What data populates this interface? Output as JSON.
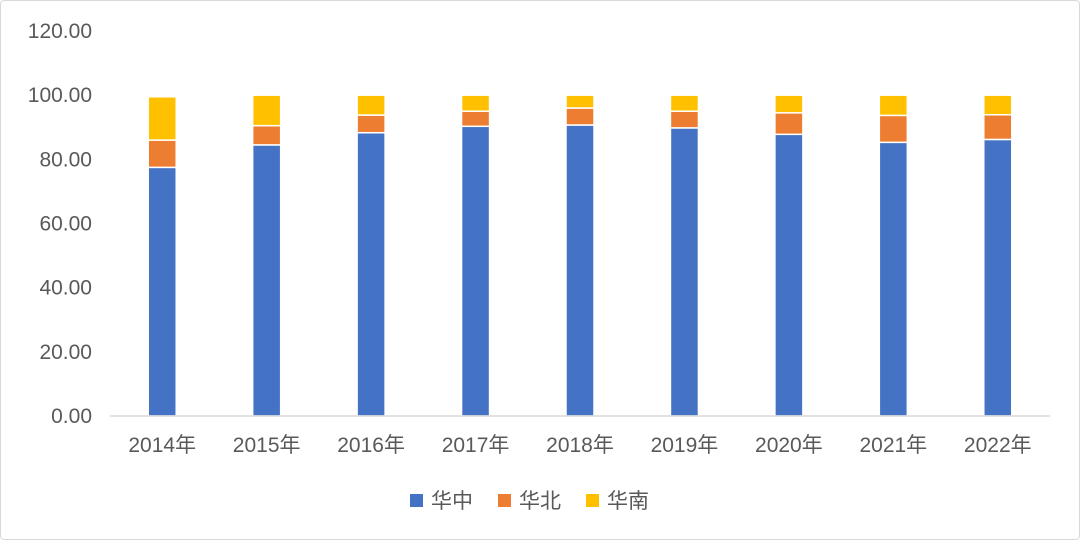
{
  "chart_data": {
    "type": "bar",
    "stacked": true,
    "categories": [
      "2014年",
      "2015年",
      "2016年",
      "2017年",
      "2018年",
      "2019年",
      "2020年",
      "2021年",
      "2022年"
    ],
    "series": [
      {
        "name": "华中",
        "color": "#4472C4",
        "values": [
          77.5,
          84.5,
          88.3,
          90.3,
          90.7,
          89.8,
          87.8,
          85.3,
          86.2
        ]
      },
      {
        "name": "华北",
        "color": "#ED7D31",
        "values": [
          8.5,
          6.0,
          5.5,
          4.7,
          5.3,
          5.2,
          6.7,
          8.4,
          7.7
        ]
      },
      {
        "name": "华南",
        "color": "#FFC000",
        "values": [
          13.5,
          9.5,
          6.2,
          5.0,
          4.0,
          5.0,
          5.5,
          6.3,
          6.1
        ]
      }
    ],
    "ylim": [
      0,
      120
    ],
    "yticks": [
      "0.00",
      "20.00",
      "40.00",
      "60.00",
      "80.00",
      "100.00",
      "120.00"
    ],
    "ytick_values": [
      0,
      20,
      40,
      60,
      80,
      100,
      120
    ],
    "grid": false,
    "legend_position": "bottom",
    "title": "",
    "xlabel": "",
    "ylabel": ""
  }
}
